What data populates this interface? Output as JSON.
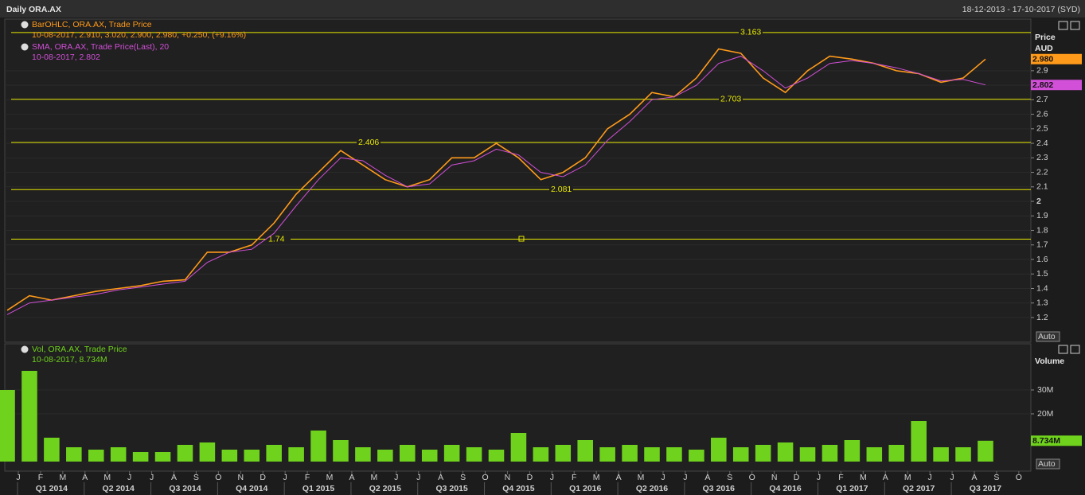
{
  "header": {
    "title": "Daily ORA.AX",
    "range": "18-12-2013 - 17-10-2017 (SYD)"
  },
  "chart_data": [
    {
      "type": "line",
      "x": [
        "2013-12",
        "2014-01",
        "2014-02",
        "2014-03",
        "2014-04",
        "2014-05",
        "2014-06",
        "2014-07",
        "2014-08",
        "2014-09",
        "2014-10",
        "2014-11",
        "2014-12",
        "2015-01",
        "2015-02",
        "2015-03",
        "2015-04",
        "2015-05",
        "2015-06",
        "2015-07",
        "2015-08",
        "2015-09",
        "2015-10",
        "2015-11",
        "2015-12",
        "2016-01",
        "2016-02",
        "2016-03",
        "2016-04",
        "2016-05",
        "2016-06",
        "2016-07",
        "2016-08",
        "2016-09",
        "2016-10",
        "2016-11",
        "2016-12",
        "2017-01",
        "2017-02",
        "2017-03",
        "2017-04",
        "2017-05",
        "2017-06",
        "2017-07",
        "2017-08"
      ],
      "series": [
        {
          "name": "BarOHLC, ORA.AX, Trade Price",
          "color": "#ff9a1a",
          "values": [
            1.25,
            1.35,
            1.32,
            1.35,
            1.38,
            1.4,
            1.42,
            1.45,
            1.46,
            1.65,
            1.65,
            1.7,
            1.85,
            2.05,
            2.2,
            2.35,
            2.25,
            2.15,
            2.1,
            2.15,
            2.3,
            2.3,
            2.4,
            2.3,
            2.15,
            2.2,
            2.3,
            2.5,
            2.6,
            2.75,
            2.72,
            2.85,
            3.05,
            3.02,
            2.85,
            2.75,
            2.9,
            3.0,
            2.98,
            2.95,
            2.9,
            2.88,
            2.82,
            2.85,
            2.98
          ]
        },
        {
          "name": "SMA, ORA.AX, Trade Price(Last), 20",
          "color": "#d24fd8",
          "values": [
            1.22,
            1.3,
            1.32,
            1.34,
            1.36,
            1.39,
            1.41,
            1.43,
            1.45,
            1.58,
            1.65,
            1.67,
            1.78,
            1.97,
            2.15,
            2.3,
            2.28,
            2.18,
            2.1,
            2.12,
            2.25,
            2.28,
            2.36,
            2.32,
            2.2,
            2.17,
            2.25,
            2.42,
            2.55,
            2.7,
            2.72,
            2.8,
            2.95,
            3.0,
            2.9,
            2.78,
            2.85,
            2.95,
            2.97,
            2.95,
            2.92,
            2.88,
            2.83,
            2.84,
            2.802
          ]
        }
      ],
      "legend_details": [
        "10-08-2017, 2.910, 3.020, 2.900, 2.980, +0.250, (+9.16%)",
        "10-08-2017, 2.802"
      ],
      "y_axis_title": "Price",
      "y_axis_unit": "AUD",
      "scale_mode": "Auto",
      "ylim": [
        1.03,
        3.25
      ],
      "yticks": [
        1.2,
        1.3,
        1.4,
        1.5,
        1.6,
        1.7,
        1.8,
        1.9,
        2,
        2.1,
        2.2,
        2.3,
        2.4,
        2.5,
        2.6,
        2.7,
        2.8,
        2.9
      ],
      "levels": [
        {
          "value": 3.163,
          "label": "3.163"
        },
        {
          "value": 2.703,
          "label": "2.703"
        },
        {
          "value": 2.406,
          "label": "2.406"
        },
        {
          "value": 2.081,
          "label": "2.081"
        },
        {
          "value": 1.74,
          "label": "1.74"
        }
      ],
      "level_color": "#e8e800",
      "badges": [
        {
          "value": 2.98,
          "label": "2.980",
          "color": "#ff9a1a"
        },
        {
          "value": 2.802,
          "label": "2.802",
          "color": "#d24fd8"
        }
      ]
    },
    {
      "type": "bar",
      "x": [
        "2013-12",
        "2014-01",
        "2014-02",
        "2014-03",
        "2014-04",
        "2014-05",
        "2014-06",
        "2014-07",
        "2014-08",
        "2014-09",
        "2014-10",
        "2014-11",
        "2014-12",
        "2015-01",
        "2015-02",
        "2015-03",
        "2015-04",
        "2015-05",
        "2015-06",
        "2015-07",
        "2015-08",
        "2015-09",
        "2015-10",
        "2015-11",
        "2015-12",
        "2016-01",
        "2016-02",
        "2016-03",
        "2016-04",
        "2016-05",
        "2016-06",
        "2016-07",
        "2016-08",
        "2016-09",
        "2016-10",
        "2016-11",
        "2016-12",
        "2017-01",
        "2017-02",
        "2017-03",
        "2017-04",
        "2017-05",
        "2017-06",
        "2017-07",
        "2017-08"
      ],
      "series": [
        {
          "name": "Vol, ORA.AX, Trade Price",
          "color": "#6fd21c",
          "values": [
            30000000,
            38000000,
            10000000,
            6000000,
            5000000,
            6000000,
            4000000,
            4000000,
            7000000,
            8000000,
            5000000,
            5000000,
            7000000,
            6000000,
            13000000,
            9000000,
            6000000,
            5000000,
            7000000,
            5000000,
            7000000,
            6000000,
            5000000,
            12000000,
            6000000,
            7000000,
            9000000,
            6000000,
            7000000,
            6000000,
            6000000,
            5000000,
            10000000,
            6000000,
            7000000,
            8000000,
            6000000,
            7000000,
            9000000,
            6000000,
            7000000,
            17000000,
            6000000,
            6000000,
            8734000
          ]
        }
      ],
      "legend_details": [
        "10-08-2017, 8.734M"
      ],
      "y_axis_title": "Volume",
      "scale_mode": "Auto",
      "ylim": [
        0,
        49000000
      ],
      "yticks": [
        {
          "value": 20000000,
          "label": "20M"
        },
        {
          "value": 30000000,
          "label": "30M"
        }
      ],
      "badges": [
        {
          "value": 8734000,
          "label": "8.734M",
          "color": "#6fd21c"
        }
      ]
    }
  ],
  "x_axis": {
    "month_labels": [
      "J",
      "F",
      "M",
      "A",
      "M",
      "J",
      "J",
      "A",
      "S",
      "O",
      "N",
      "D",
      "J",
      "F",
      "M",
      "A",
      "M",
      "J",
      "J",
      "A",
      "S",
      "O",
      "N",
      "D",
      "J",
      "F",
      "M",
      "A",
      "M",
      "J",
      "J",
      "A",
      "S",
      "O",
      "N",
      "D",
      "J",
      "F",
      "M",
      "A",
      "M",
      "J",
      "J",
      "A",
      "S",
      "O"
    ],
    "quarter_labels": [
      "Q1 2014",
      "Q2 2014",
      "Q3 2014",
      "Q4 2014",
      "Q1 2015",
      "Q2 2015",
      "Q3 2015",
      "Q4 2015",
      "Q1 2016",
      "Q2 2016",
      "Q3 2016",
      "Q4 2016",
      "Q1 2017",
      "Q2 2017",
      "Q3 2017"
    ]
  }
}
